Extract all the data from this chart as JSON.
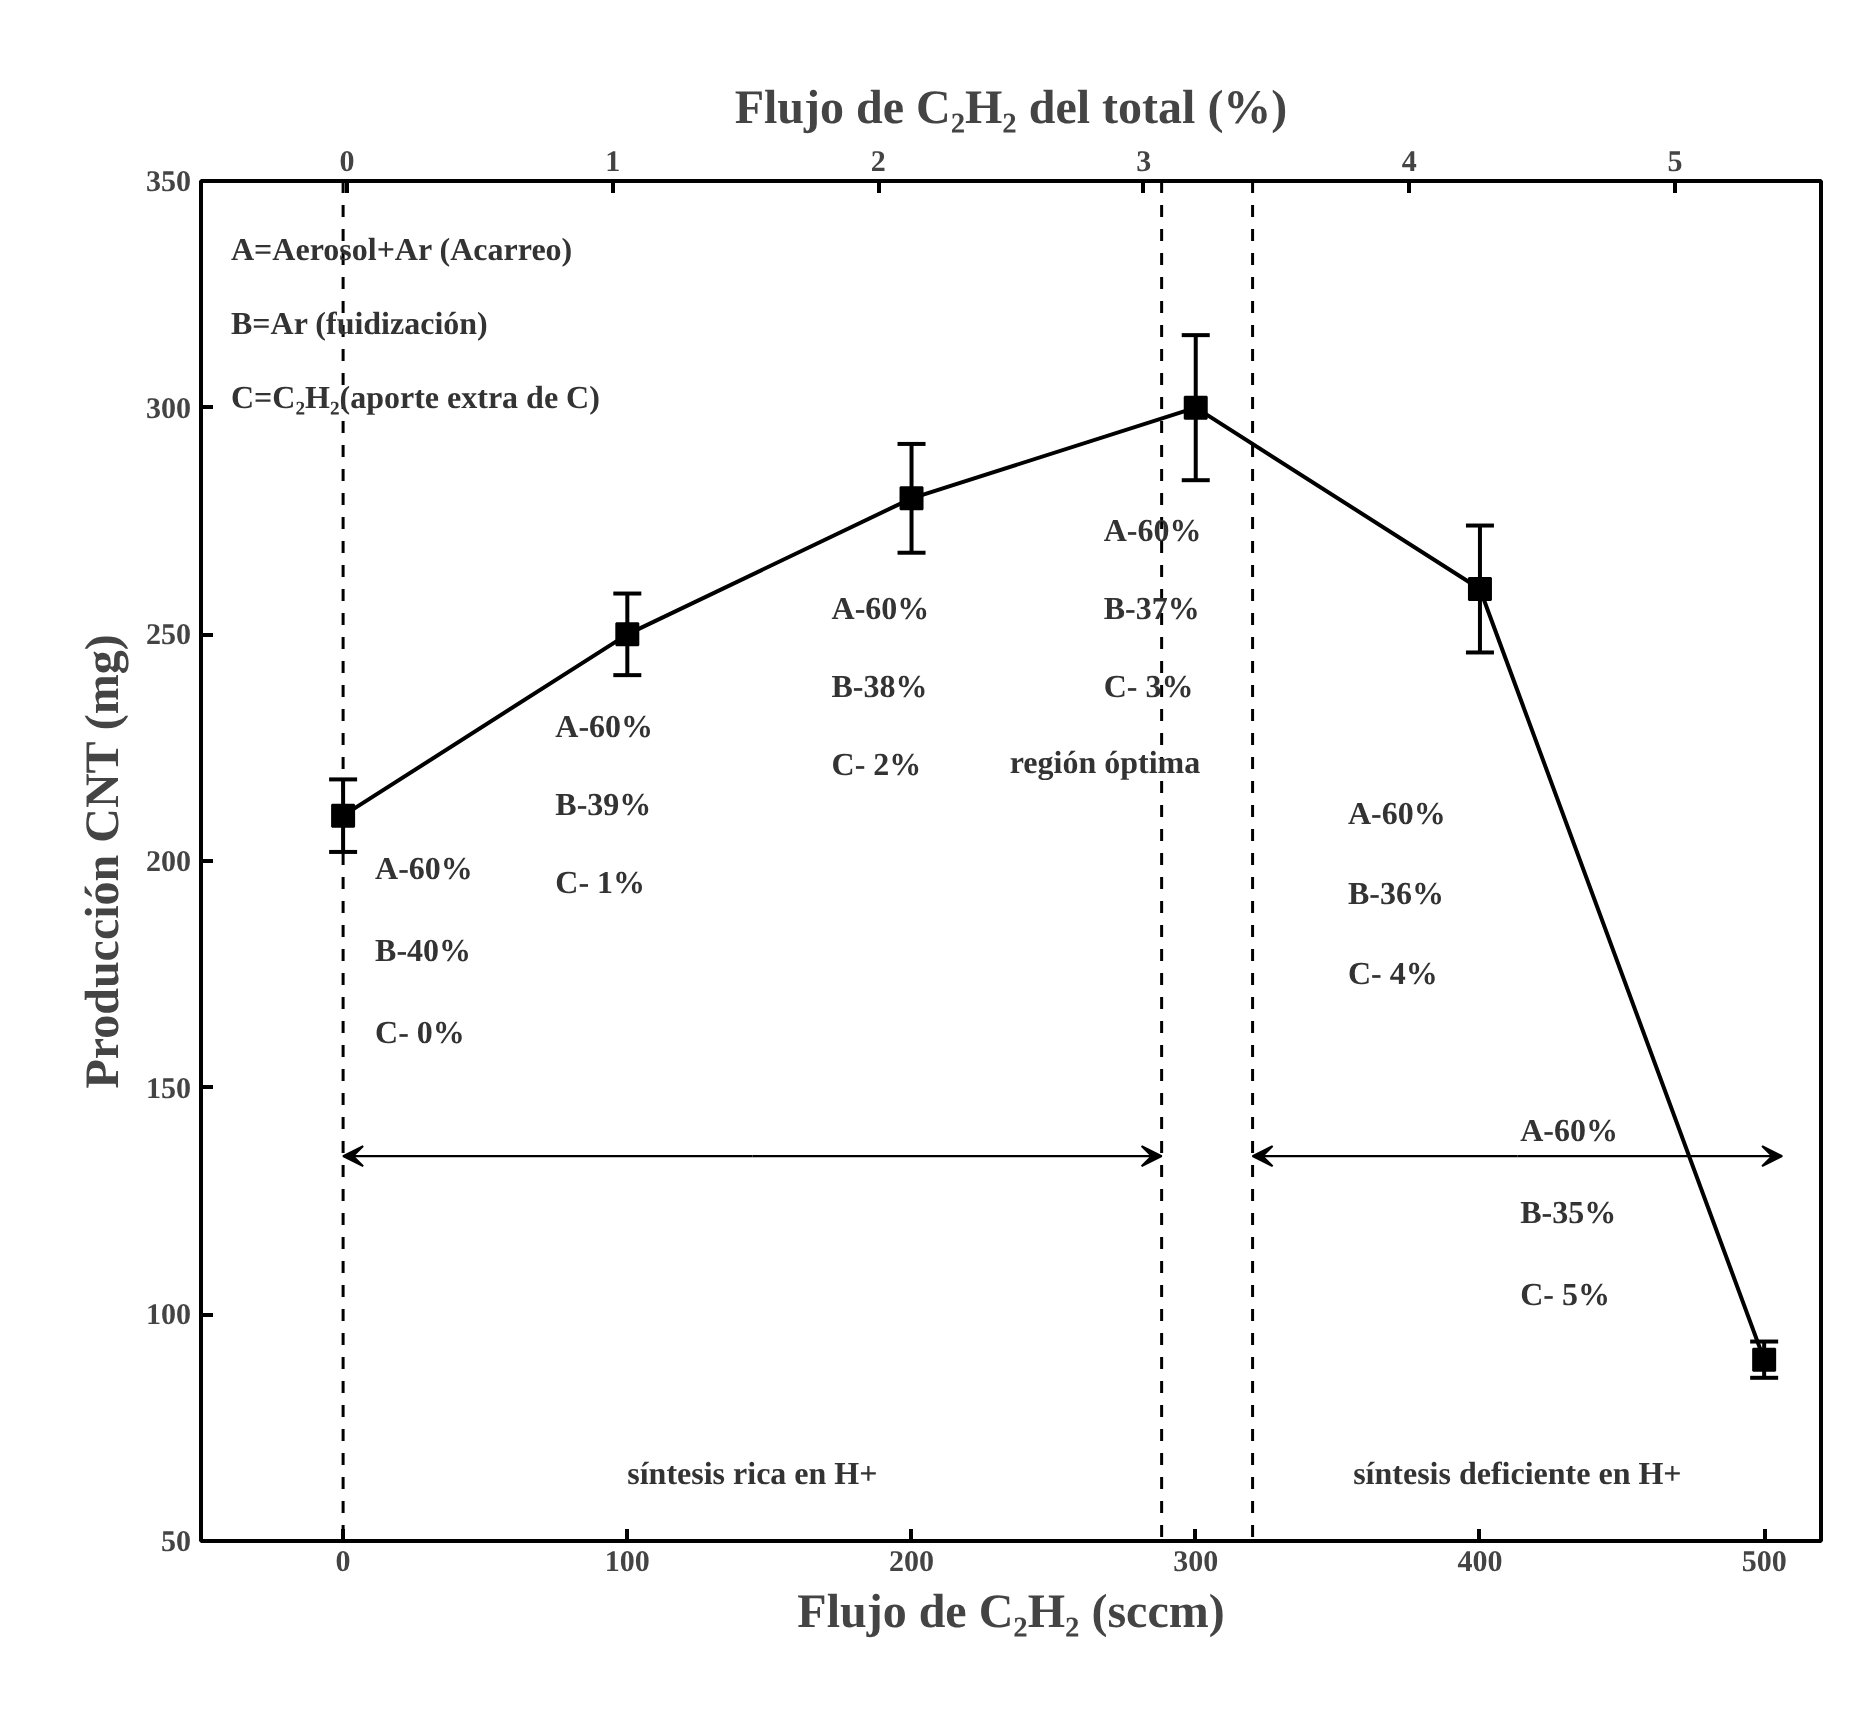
{
  "chart_data": {
    "type": "line",
    "xlabel": "Flujo de C₂H₂ (sccm)",
    "ylabel": "Producción CNT (mg)",
    "x2label": "Flujo de C₂H₂ del total (%)",
    "x": [
      0,
      100,
      200,
      300,
      400,
      500
    ],
    "series": [
      {
        "color": "#000000",
        "values": [
          210,
          250,
          280,
          300,
          260,
          90
        ],
        "errors": [
          8,
          9,
          12,
          16,
          14,
          4
        ]
      }
    ],
    "marker": "square",
    "line_style": "solid",
    "grid": false,
    "xlim": [
      -50,
      520
    ],
    "xticks": [
      0,
      100,
      200,
      300,
      400,
      500
    ],
    "x2lim": [
      -0.55,
      5.55
    ],
    "x2ticks": [
      0,
      1,
      2,
      3,
      4,
      5
    ],
    "ylim": [
      50,
      350
    ],
    "yticks": [
      50,
      100,
      150,
      200,
      250,
      300,
      350
    ],
    "ref_lines": [
      {
        "axis": "x",
        "value": 0,
        "line_style": "dashed"
      },
      {
        "axis": "x",
        "value": 288,
        "line_style": "dashed"
      },
      {
        "axis": "x",
        "value": 320,
        "line_style": "dashed"
      }
    ],
    "annotations": [
      "A=Aerosol+Ar (Acarreo)\nB=Ar (fuidización)\nC=C₂H₂(aporte extra de C)",
      "A-60%\nB-40%\nC- 0%",
      "A-60%\nB-39%\nC- 1%",
      "A-60%\nB-38%\nC- 2%",
      "A-60%\nB-37%\nC- 3%\nregión óptima",
      "A-60%\nB-36%\nC- 4%",
      "A-60%\nB-35%\nC- 5%",
      "síntesis rica en H+",
      "síntesis deficiente en H+"
    ]
  }
}
